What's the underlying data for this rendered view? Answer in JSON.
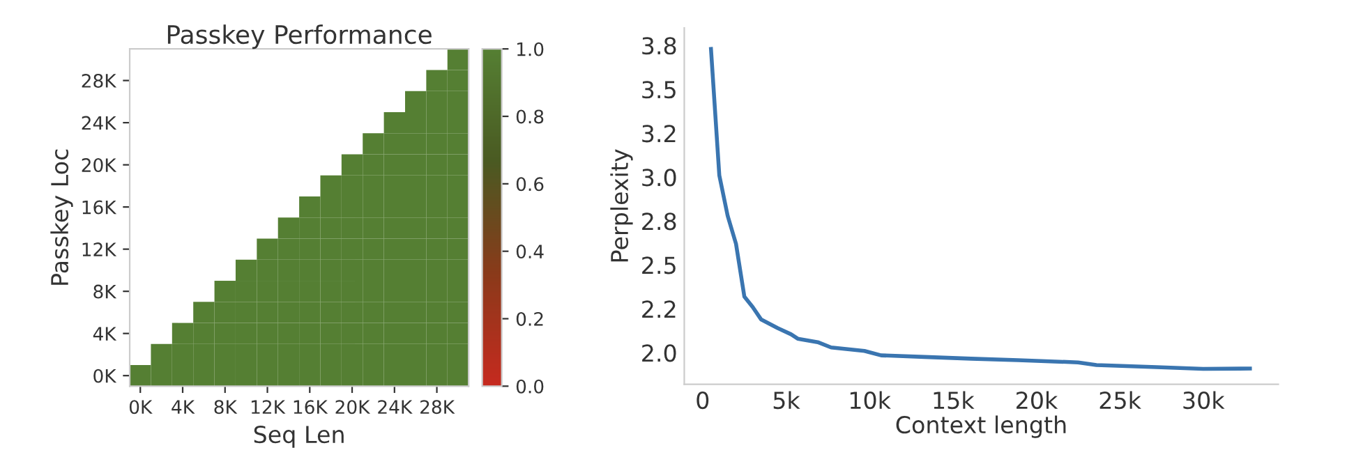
{
  "chart_data": [
    {
      "type": "heatmap",
      "title": "Passkey Performance",
      "xlabel": "Seq Len",
      "ylabel": "Passkey Loc",
      "categories": [
        "0K",
        null,
        "4K",
        null,
        "8K",
        null,
        "12K",
        null,
        "16K",
        null,
        "20K",
        null,
        "24K",
        null,
        "28K",
        null
      ],
      "y_categories": [
        null,
        "28K",
        null,
        "24K",
        null,
        "20K",
        null,
        "16K",
        null,
        "12K",
        null,
        "8K",
        null,
        "4K",
        null,
        "0K"
      ],
      "cells": [
        [
          null,
          null,
          null,
          null,
          null,
          null,
          null,
          null,
          null,
          null,
          null,
          null,
          null,
          null,
          null,
          1.0
        ],
        [
          null,
          null,
          null,
          null,
          null,
          null,
          null,
          null,
          null,
          null,
          null,
          null,
          null,
          null,
          1.0,
          1.0
        ],
        [
          null,
          null,
          null,
          null,
          null,
          null,
          null,
          null,
          null,
          null,
          null,
          null,
          null,
          1.0,
          1.0,
          1.0
        ],
        [
          null,
          null,
          null,
          null,
          null,
          null,
          null,
          null,
          null,
          null,
          null,
          null,
          1.0,
          1.0,
          1.0,
          1.0
        ],
        [
          null,
          null,
          null,
          null,
          null,
          null,
          null,
          null,
          null,
          null,
          null,
          1.0,
          1.0,
          1.0,
          1.0,
          1.0
        ],
        [
          null,
          null,
          null,
          null,
          null,
          null,
          null,
          null,
          null,
          null,
          1.0,
          1.0,
          1.0,
          1.0,
          1.0,
          1.0
        ],
        [
          null,
          null,
          null,
          null,
          null,
          null,
          null,
          null,
          null,
          1.0,
          1.0,
          1.0,
          1.0,
          1.0,
          1.0,
          1.0
        ],
        [
          null,
          null,
          null,
          null,
          null,
          null,
          null,
          null,
          1.0,
          1.0,
          1.0,
          1.0,
          1.0,
          1.0,
          1.0,
          1.0
        ],
        [
          null,
          null,
          null,
          null,
          null,
          null,
          null,
          1.0,
          1.0,
          1.0,
          1.0,
          1.0,
          1.0,
          1.0,
          1.0,
          1.0
        ],
        [
          null,
          null,
          null,
          null,
          null,
          null,
          1.0,
          1.0,
          1.0,
          1.0,
          1.0,
          1.0,
          1.0,
          1.0,
          1.0,
          1.0
        ],
        [
          null,
          null,
          null,
          null,
          null,
          1.0,
          1.0,
          1.0,
          1.0,
          1.0,
          1.0,
          1.0,
          1.0,
          1.0,
          1.0,
          1.0
        ],
        [
          null,
          null,
          null,
          null,
          1.0,
          1.0,
          1.0,
          1.0,
          1.0,
          1.0,
          1.0,
          1.0,
          1.0,
          1.0,
          1.0,
          1.0
        ],
        [
          null,
          null,
          null,
          1.0,
          1.0,
          1.0,
          1.0,
          1.0,
          1.0,
          1.0,
          1.0,
          1.0,
          1.0,
          1.0,
          1.0,
          1.0
        ],
        [
          null,
          null,
          1.0,
          1.0,
          1.0,
          1.0,
          1.0,
          1.0,
          1.0,
          1.0,
          1.0,
          1.0,
          1.0,
          1.0,
          1.0,
          1.0
        ],
        [
          null,
          1.0,
          1.0,
          1.0,
          1.0,
          1.0,
          1.0,
          1.0,
          1.0,
          1.0,
          1.0,
          1.0,
          1.0,
          1.0,
          1.0,
          1.0
        ],
        [
          1.0,
          1.0,
          1.0,
          1.0,
          1.0,
          1.0,
          1.0,
          1.0,
          1.0,
          1.0,
          1.0,
          1.0,
          1.0,
          1.0,
          1.0,
          1.0
        ]
      ],
      "clim": [
        0,
        1
      ],
      "cticks": [
        {
          "value": 0,
          "label": "0.0"
        },
        0.2,
        0.4,
        0.6,
        0.8,
        {
          "value": 1,
          "label": "1.0"
        }
      ]
    },
    {
      "type": "line",
      "xlabel": "Context length",
      "ylabel": "Perplexity",
      "series": [
        {
          "color": "#3a75b0",
          "x": [
            500,
            1000,
            1500,
            2000,
            2500,
            3000,
            3500,
            4500,
            5300,
            5700,
            6900,
            7700,
            9700,
            10700,
            13300,
            16100,
            18900,
            22500,
            23600,
            27200,
            30000,
            32800
          ],
          "values": [
            3.73,
            3.01,
            2.78,
            2.62,
            2.32,
            2.26,
            2.19,
            2.14,
            2.105,
            2.08,
            2.06,
            2.03,
            2.01,
            1.985,
            1.976,
            1.966,
            1.958,
            1.945,
            1.93,
            1.918,
            1.908,
            1.91
          ]
        }
      ],
      "xlim": [
        -1100,
        34500
      ],
      "ylim": [
        1.82,
        3.85
      ],
      "xticks": [
        0,
        {
          "value": 5000,
          "label": "5k"
        },
        {
          "value": 10000,
          "label": "10k"
        },
        {
          "value": 15000,
          "label": "15k"
        },
        {
          "value": 20000,
          "label": "20k"
        },
        {
          "value": 25000,
          "label": "25k"
        },
        {
          "value": 30000,
          "label": "30k"
        }
      ],
      "yticks": [
        {
          "value": 2.0,
          "label": "2.0"
        },
        {
          "value": 2.25,
          "label": "2.2"
        },
        2.5,
        {
          "value": 2.75,
          "label": "2.8"
        },
        {
          "value": 3.0,
          "label": "3.0"
        },
        {
          "value": 3.25,
          "label": "3.2"
        },
        3.5,
        {
          "value": 3.75,
          "label": "3.8"
        }
      ],
      "grid": false,
      "line_style": "solid",
      "marker": "none"
    }
  ]
}
